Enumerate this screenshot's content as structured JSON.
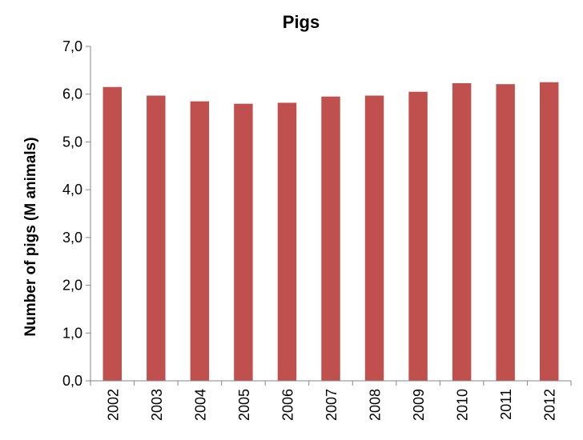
{
  "chart_data": {
    "type": "bar",
    "title": "Pigs",
    "xlabel": "",
    "ylabel": "Number of pigs (M animals)",
    "categories": [
      "2002",
      "2003",
      "2004",
      "2005",
      "2006",
      "2007",
      "2008",
      "2009",
      "2010",
      "2011",
      "2012"
    ],
    "values": [
      6.15,
      5.97,
      5.85,
      5.8,
      5.82,
      5.95,
      5.97,
      6.05,
      6.23,
      6.21,
      6.25
    ],
    "ylim": [
      0,
      7
    ],
    "yticks": [
      "0,0",
      "1,0",
      "2,0",
      "3,0",
      "4,0",
      "5,0",
      "6,0",
      "7,0"
    ],
    "grid": false,
    "legend": "none",
    "bar_color": "#c0504d",
    "axis_color": "#868686"
  }
}
